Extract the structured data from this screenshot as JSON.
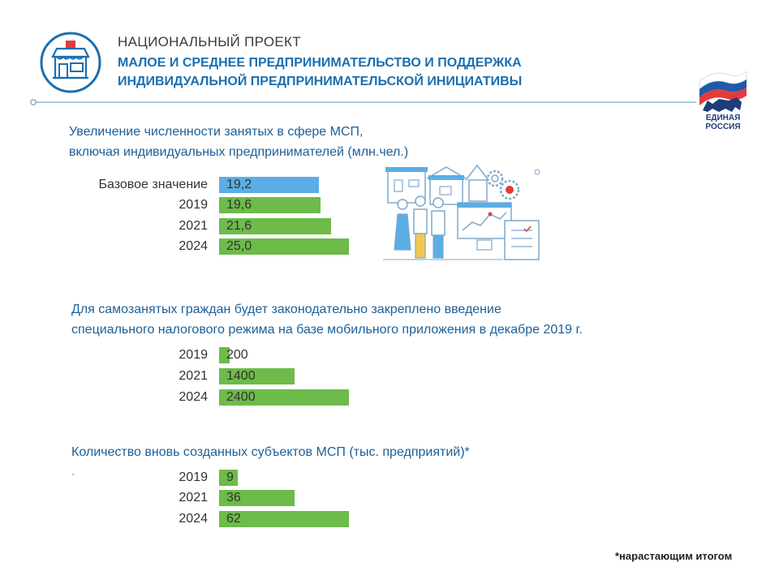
{
  "header": {
    "label": "НАЦИОНАЛЬНЫЙ ПРОЕКТ",
    "title_line1": "МАЛОЕ И СРЕДНЕЕ  ПРЕДПРИНИМАТЕЛЬСТВО  И ПОДДЕРЖКА",
    "title_line2": "ИНДИВИДУАЛЬНОЙ ПРЕДПРИНИМАТЕЛЬСКОЙ  ИНИЦИАТИВЫ",
    "logo_text1": "ЕДИНАЯ",
    "logo_text2": "РОССИЯ"
  },
  "colors": {
    "accent": "#1b6fb0",
    "green": "#6dbb4a",
    "blue": "#5aaee5",
    "navy": "#1f3d7a",
    "red": "#e23b3b"
  },
  "footnote": "*нарастающим итогом",
  "dot": "·",
  "chart_data": [
    {
      "type": "bar",
      "orientation": "horizontal",
      "title_line1": "Увеличение численности  занятых в сфере МСП,",
      "title_line2": "включая индивидуальных предпринимателей  (млн.чел.)",
      "categories": [
        "Базовое значение",
        "2019",
        "2021",
        "2024"
      ],
      "values": [
        19.2,
        19.6,
        21.6,
        25.0
      ],
      "value_labels": [
        "19,2",
        "19,6",
        "21,6",
        "25,0"
      ],
      "colors": [
        "#5aaee5",
        "#6dbb4a",
        "#6dbb4a",
        "#6dbb4a"
      ],
      "xlim": [
        0,
        25
      ]
    },
    {
      "type": "bar",
      "orientation": "horizontal",
      "title_line1": "Для самозанятых  граждан будет законодательно закреплено введение",
      "title_line2": "специального  налогового режима на базе мобильного  приложения в декабре 2019 г.",
      "categories": [
        "2019",
        "2021",
        "2024"
      ],
      "values": [
        200,
        1400,
        2400
      ],
      "value_labels": [
        "200",
        "1400",
        "2400"
      ],
      "colors": [
        "#6dbb4a",
        "#6dbb4a",
        "#6dbb4a"
      ],
      "xlim": [
        0,
        2400
      ]
    },
    {
      "type": "bar",
      "orientation": "horizontal",
      "title_line1": "Количество вновь созданных субъектов МСП (тыс. предприятий)*",
      "title_line2": "",
      "categories": [
        "2019",
        "2021",
        "2024"
      ],
      "values": [
        9,
        36,
        62
      ],
      "value_labels": [
        "9",
        "36",
        "62"
      ],
      "colors": [
        "#6dbb4a",
        "#6dbb4a",
        "#6dbb4a"
      ],
      "xlim": [
        0,
        62
      ]
    }
  ]
}
